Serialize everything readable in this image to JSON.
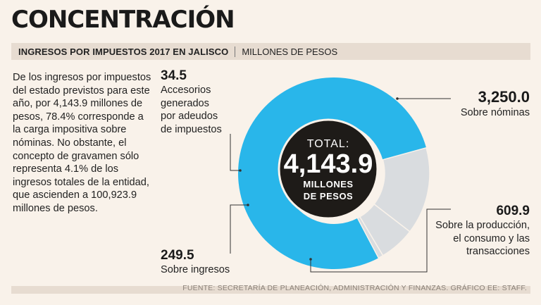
{
  "title": "CONCENTRACIÓN",
  "subtitle": {
    "main": "INGRESOS POR IMPUESTOS 2017 EN JALISCO",
    "unit": "MILLONES DE PESOS"
  },
  "description": "De los ingresos por impuestos del estado previstos para este año, por 4,143.9 millones de pesos, 78.4% corresponde a la carga impositiva sobre nóminas. No obstante, el concepto de gravamen sólo representa 4.1% de los ingresos totales de la entidad, que ascienden a 100,923.9 millones de pesos.",
  "center": {
    "total_label": "TOTAL:",
    "total_value": "4,143.9",
    "unit_line1": "MILLONES",
    "unit_line2": "DE PESOS"
  },
  "labels": {
    "nominas": {
      "value": "3,250.0",
      "text": "Sobre nóminas"
    },
    "produccion": {
      "value": "609.9",
      "line1": "Sobre la producción,",
      "line2": "el consumo y las",
      "line3": "transacciones"
    },
    "ingresos": {
      "value": "249.5",
      "text": "Sobre ingresos"
    },
    "accesorios": {
      "value": "34.5",
      "line1": "Accesorios",
      "line2": "generados",
      "line3": "por adeudos",
      "line4": "de impuestos"
    }
  },
  "source": "FUENTE: SECRETARÍA DE PLANEACIÓN, ADMINISTRACIÓN Y FINANZAS.  GRÁFICO EE: STAFF.",
  "colors": {
    "primary": "#29b6ea",
    "secondary": "#d9dcdf",
    "center": "#1e1b18",
    "background": "#f9f2ea"
  },
  "chart_data": {
    "type": "pie",
    "variant": "donut",
    "title": "INGRESOS POR IMPUESTOS 2017 EN JALISCO",
    "unit": "MILLONES DE PESOS",
    "total": 4143.9,
    "categories": [
      "Sobre nóminas",
      "Sobre la producción, el consumo y las transacciones",
      "Sobre ingresos",
      "Accesorios generados por adeudos de impuestos"
    ],
    "values": [
      3250.0,
      609.9,
      249.5,
      34.5
    ]
  }
}
